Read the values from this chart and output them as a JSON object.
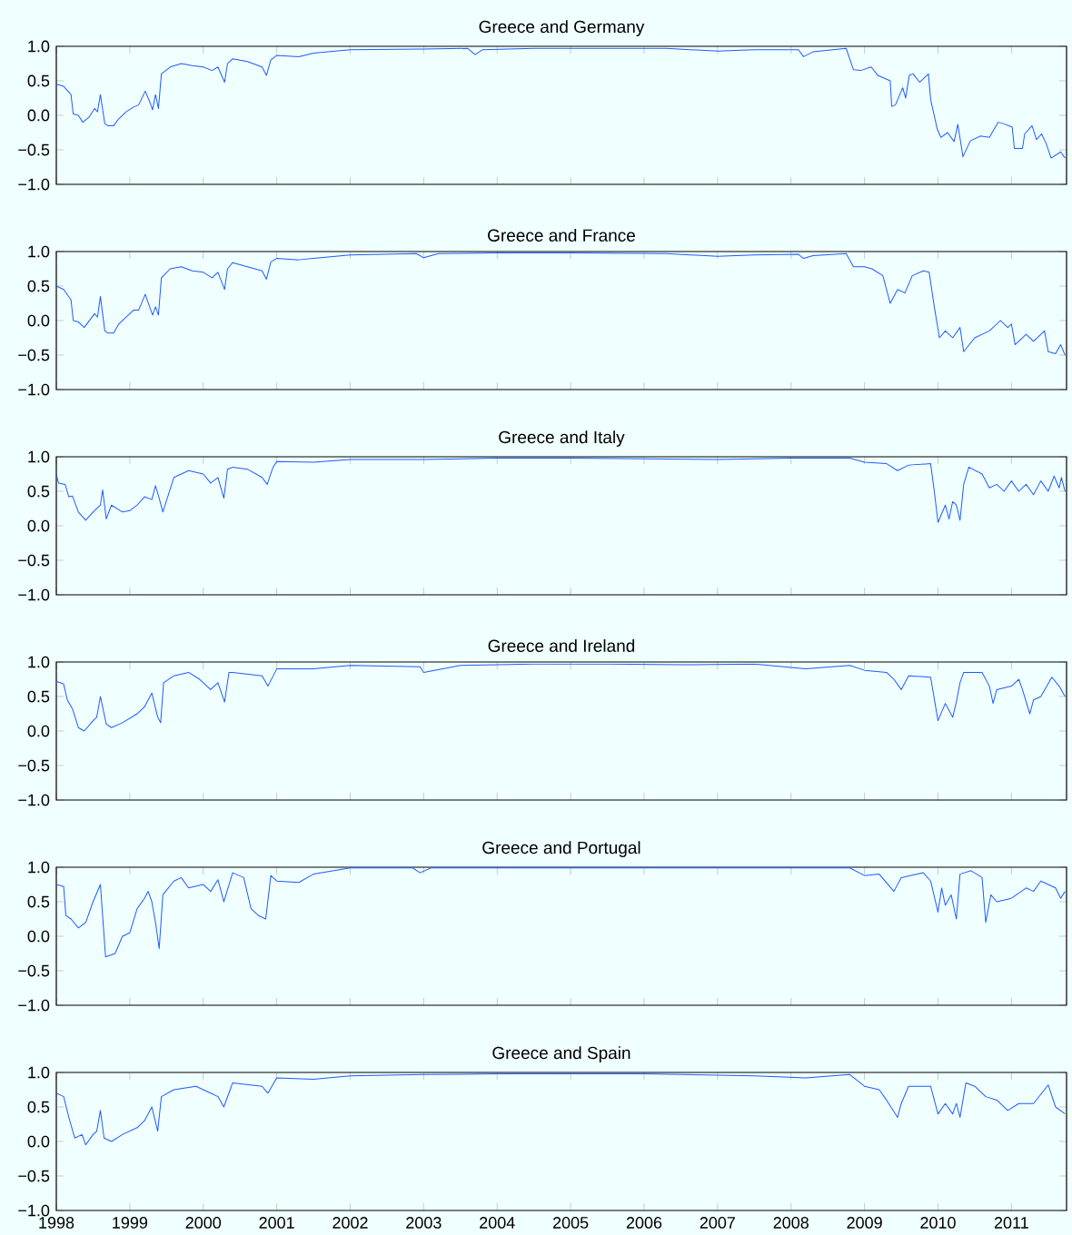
{
  "chart_data": [
    {
      "type": "line",
      "title": "Greece and Germany",
      "color": "#1f5bff",
      "xlim": [
        1998,
        2011.75
      ],
      "ylim": [
        -1,
        1
      ],
      "tick_labels": "y",
      "xticks": [
        1998,
        1999,
        2000,
        2001,
        2002,
        2003,
        2004,
        2005,
        2006,
        2007,
        2008,
        2009,
        2010,
        2011
      ],
      "yticks": [
        {
          "value": -1,
          "label": "−1.0"
        },
        {
          "value": -0.5,
          "label": "−0.5"
        },
        {
          "value": 0,
          "label": "0.0"
        },
        {
          "value": 0.5,
          "label": "0.5"
        },
        {
          "value": 1,
          "label": "1.0"
        }
      ],
      "x": [
        1998.0,
        1998.1,
        1998.2,
        1998.23,
        1998.3,
        1998.36,
        1998.45,
        1998.52,
        1998.56,
        1998.6,
        1998.66,
        1998.7,
        1998.78,
        1998.85,
        1998.95,
        1999.05,
        1999.12,
        1999.21,
        1999.27,
        1999.31,
        1999.35,
        1999.39,
        1999.43,
        1999.55,
        1999.7,
        1999.85,
        2000.0,
        2000.12,
        2000.2,
        2000.29,
        2000.33,
        2000.4,
        2000.6,
        2000.8,
        2000.86,
        2000.92,
        2001.0,
        2001.3,
        2001.5,
        2002.0,
        2003.0,
        2003.6,
        2003.7,
        2003.8,
        2004.5,
        2005.5,
        2006.3,
        2007.0,
        2007.5,
        2008.1,
        2008.17,
        2008.3,
        2008.75,
        2008.85,
        2008.95,
        2009.09,
        2009.18,
        2009.35,
        2009.37,
        2009.42,
        2009.52,
        2009.56,
        2009.61,
        2009.66,
        2009.75,
        2009.87,
        2009.9,
        2009.99,
        2010.04,
        2010.13,
        2010.22,
        2010.27,
        2010.34,
        2010.44,
        2010.58,
        2010.7,
        2010.82,
        2010.89,
        2011.01,
        2011.04,
        2011.15,
        2011.18,
        2011.28,
        2011.34,
        2011.41,
        2011.47,
        2011.54,
        2011.67,
        2011.73
      ],
      "values": [
        0.45,
        0.42,
        0.3,
        0.02,
        0.0,
        -0.1,
        -0.02,
        0.1,
        0.05,
        0.3,
        -0.12,
        -0.15,
        -0.15,
        -0.05,
        0.05,
        0.12,
        0.15,
        0.35,
        0.2,
        0.08,
        0.3,
        0.1,
        0.6,
        0.7,
        0.75,
        0.72,
        0.7,
        0.65,
        0.7,
        0.48,
        0.75,
        0.82,
        0.78,
        0.7,
        0.58,
        0.8,
        0.87,
        0.85,
        0.9,
        0.95,
        0.96,
        0.97,
        0.88,
        0.95,
        0.97,
        0.97,
        0.97,
        0.93,
        0.95,
        0.95,
        0.85,
        0.92,
        0.97,
        0.66,
        0.65,
        0.7,
        0.58,
        0.5,
        0.13,
        0.15,
        0.4,
        0.25,
        0.58,
        0.6,
        0.48,
        0.6,
        0.23,
        -0.2,
        -0.32,
        -0.25,
        -0.38,
        -0.13,
        -0.6,
        -0.37,
        -0.3,
        -0.32,
        -0.1,
        -0.12,
        -0.17,
        -0.48,
        -0.48,
        -0.27,
        -0.15,
        -0.35,
        -0.27,
        -0.4,
        -0.62,
        -0.53,
        -0.62
      ]
    },
    {
      "type": "line",
      "title": "Greece and France",
      "color": "#1f5bff",
      "xlim": [
        1998,
        2011.75
      ],
      "ylim": [
        -1,
        1
      ],
      "tick_labels": "y",
      "xticks": [
        1998,
        1999,
        2000,
        2001,
        2002,
        2003,
        2004,
        2005,
        2006,
        2007,
        2008,
        2009,
        2010,
        2011
      ],
      "yticks": [
        {
          "value": -1,
          "label": "−1.0"
        },
        {
          "value": -0.5,
          "label": "−0.5"
        },
        {
          "value": 0,
          "label": "0.0"
        },
        {
          "value": 0.5,
          "label": "0.5"
        },
        {
          "value": 1,
          "label": "1.0"
        }
      ],
      "x": [
        1998.0,
        1998.1,
        1998.2,
        1998.23,
        1998.3,
        1998.38,
        1998.45,
        1998.52,
        1998.56,
        1998.6,
        1998.66,
        1998.7,
        1998.78,
        1998.85,
        1998.95,
        1999.05,
        1999.12,
        1999.21,
        1999.27,
        1999.31,
        1999.35,
        1999.39,
        1999.43,
        1999.55,
        1999.7,
        1999.85,
        2000.0,
        2000.12,
        2000.2,
        2000.29,
        2000.33,
        2000.4,
        2000.6,
        2000.8,
        2000.86,
        2000.92,
        2001.0,
        2001.3,
        2001.5,
        2002.0,
        2002.9,
        2003.0,
        2003.2,
        2004.0,
        2005.0,
        2006.3,
        2007.0,
        2007.5,
        2008.1,
        2008.17,
        2008.3,
        2008.75,
        2008.85,
        2009.0,
        2009.1,
        2009.25,
        2009.35,
        2009.45,
        2009.55,
        2009.65,
        2009.8,
        2009.88,
        2009.95,
        2010.02,
        2010.1,
        2010.2,
        2010.3,
        2010.35,
        2010.5,
        2010.7,
        2010.85,
        2010.95,
        2011.0,
        2011.05,
        2011.2,
        2011.3,
        2011.45,
        2011.5,
        2011.6,
        2011.67,
        2011.73
      ],
      "values": [
        0.5,
        0.45,
        0.3,
        0.0,
        -0.02,
        -0.1,
        0.0,
        0.1,
        0.05,
        0.35,
        -0.15,
        -0.18,
        -0.18,
        -0.05,
        0.05,
        0.15,
        0.15,
        0.38,
        0.2,
        0.08,
        0.2,
        0.08,
        0.62,
        0.75,
        0.78,
        0.72,
        0.7,
        0.62,
        0.7,
        0.45,
        0.75,
        0.84,
        0.78,
        0.72,
        0.6,
        0.85,
        0.9,
        0.88,
        0.9,
        0.95,
        0.97,
        0.91,
        0.97,
        0.98,
        0.98,
        0.97,
        0.93,
        0.95,
        0.96,
        0.9,
        0.94,
        0.97,
        0.78,
        0.78,
        0.75,
        0.65,
        0.25,
        0.45,
        0.4,
        0.65,
        0.72,
        0.7,
        0.2,
        -0.25,
        -0.15,
        -0.25,
        -0.1,
        -0.45,
        -0.25,
        -0.15,
        0.0,
        -0.1,
        -0.05,
        -0.35,
        -0.2,
        -0.3,
        -0.15,
        -0.45,
        -0.48,
        -0.35,
        -0.5
      ]
    },
    {
      "type": "line",
      "title": "Greece and Italy",
      "color": "#1f5bff",
      "xlim": [
        1998,
        2011.75
      ],
      "ylim": [
        -1,
        1
      ],
      "tick_labels": "y",
      "xticks": [
        1998,
        1999,
        2000,
        2001,
        2002,
        2003,
        2004,
        2005,
        2006,
        2007,
        2008,
        2009,
        2010,
        2011
      ],
      "yticks": [
        {
          "value": -1,
          "label": "−1.0"
        },
        {
          "value": -0.5,
          "label": "−0.5"
        },
        {
          "value": 0,
          "label": "0.0"
        },
        {
          "value": 0.5,
          "label": "0.5"
        },
        {
          "value": 1,
          "label": "1.0"
        }
      ],
      "x": [
        1998.0,
        1998.03,
        1998.12,
        1998.17,
        1998.22,
        1998.3,
        1998.4,
        1998.5,
        1998.6,
        1998.63,
        1998.68,
        1998.75,
        1998.9,
        1999.0,
        1999.1,
        1999.2,
        1999.3,
        1999.35,
        1999.4,
        1999.45,
        1999.6,
        1999.8,
        2000.0,
        2000.1,
        2000.2,
        2000.28,
        2000.33,
        2000.4,
        2000.6,
        2000.8,
        2000.87,
        2000.95,
        2001.0,
        2001.5,
        2002.0,
        2003.0,
        2004.0,
        2005.0,
        2006.0,
        2007.0,
        2008.0,
        2008.8,
        2009.0,
        2009.3,
        2009.45,
        2009.6,
        2009.9,
        2009.95,
        2010.0,
        2010.1,
        2010.15,
        2010.2,
        2010.25,
        2010.3,
        2010.35,
        2010.42,
        2010.6,
        2010.7,
        2010.8,
        2010.9,
        2011.0,
        2011.1,
        2011.2,
        2011.3,
        2011.4,
        2011.5,
        2011.58,
        2011.65,
        2011.68,
        2011.73
      ],
      "values": [
        0.75,
        0.62,
        0.6,
        0.42,
        0.43,
        0.2,
        0.08,
        0.2,
        0.3,
        0.52,
        0.1,
        0.3,
        0.2,
        0.22,
        0.3,
        0.42,
        0.38,
        0.58,
        0.4,
        0.2,
        0.7,
        0.8,
        0.75,
        0.62,
        0.7,
        0.4,
        0.82,
        0.85,
        0.82,
        0.7,
        0.6,
        0.85,
        0.93,
        0.92,
        0.96,
        0.96,
        0.98,
        0.98,
        0.97,
        0.96,
        0.98,
        0.98,
        0.92,
        0.9,
        0.8,
        0.88,
        0.9,
        0.5,
        0.05,
        0.3,
        0.1,
        0.35,
        0.3,
        0.08,
        0.6,
        0.85,
        0.75,
        0.55,
        0.6,
        0.5,
        0.65,
        0.5,
        0.6,
        0.45,
        0.65,
        0.5,
        0.72,
        0.55,
        0.7,
        0.5
      ]
    },
    {
      "type": "line",
      "title": "Greece and Ireland",
      "color": "#1f5bff",
      "xlim": [
        1998,
        2011.75
      ],
      "ylim": [
        -1,
        1
      ],
      "tick_labels": "y",
      "xticks": [
        1998,
        1999,
        2000,
        2001,
        2002,
        2003,
        2004,
        2005,
        2006,
        2007,
        2008,
        2009,
        2010,
        2011
      ],
      "yticks": [
        {
          "value": -1,
          "label": "−1.0"
        },
        {
          "value": -0.5,
          "label": "−0.5"
        },
        {
          "value": 0,
          "label": "0.0"
        },
        {
          "value": 0.5,
          "label": "0.5"
        },
        {
          "value": 1,
          "label": "1.0"
        }
      ],
      "x": [
        1998.0,
        1998.1,
        1998.15,
        1998.22,
        1998.3,
        1998.38,
        1998.5,
        1998.55,
        1998.6,
        1998.68,
        1998.75,
        1998.9,
        1999.1,
        1999.2,
        1999.3,
        1999.38,
        1999.42,
        1999.46,
        1999.6,
        1999.8,
        1999.95,
        2000.1,
        2000.2,
        2000.29,
        2000.35,
        2000.4,
        2000.8,
        2000.88,
        2001.0,
        2001.5,
        2002.0,
        2002.95,
        2003.0,
        2003.5,
        2004.5,
        2005.5,
        2006.5,
        2007.5,
        2008.2,
        2008.8,
        2009.0,
        2009.3,
        2009.4,
        2009.5,
        2009.6,
        2009.9,
        2010.0,
        2010.1,
        2010.2,
        2010.25,
        2010.3,
        2010.35,
        2010.6,
        2010.7,
        2010.75,
        2010.8,
        2011.0,
        2011.1,
        2011.15,
        2011.25,
        2011.3,
        2011.4,
        2011.55,
        2011.65,
        2011.73
      ],
      "values": [
        0.72,
        0.68,
        0.45,
        0.32,
        0.05,
        0.0,
        0.15,
        0.2,
        0.5,
        0.1,
        0.05,
        0.12,
        0.25,
        0.35,
        0.55,
        0.2,
        0.12,
        0.7,
        0.8,
        0.85,
        0.75,
        0.6,
        0.7,
        0.42,
        0.85,
        0.85,
        0.8,
        0.65,
        0.9,
        0.9,
        0.95,
        0.93,
        0.85,
        0.95,
        0.97,
        0.97,
        0.96,
        0.97,
        0.9,
        0.95,
        0.88,
        0.85,
        0.75,
        0.6,
        0.8,
        0.78,
        0.15,
        0.4,
        0.2,
        0.42,
        0.7,
        0.85,
        0.85,
        0.65,
        0.4,
        0.6,
        0.65,
        0.75,
        0.6,
        0.25,
        0.45,
        0.5,
        0.78,
        0.65,
        0.5
      ]
    },
    {
      "type": "line",
      "title": "Greece and Portugal",
      "color": "#1f5bff",
      "xlim": [
        1998,
        2011.75
      ],
      "ylim": [
        -1,
        1
      ],
      "tick_labels": "y",
      "xticks": [
        1998,
        1999,
        2000,
        2001,
        2002,
        2003,
        2004,
        2005,
        2006,
        2007,
        2008,
        2009,
        2010,
        2011
      ],
      "yticks": [
        {
          "value": -1,
          "label": "−1.0"
        },
        {
          "value": -0.5,
          "label": "−0.5"
        },
        {
          "value": 0,
          "label": "0.0"
        },
        {
          "value": 0.5,
          "label": "0.5"
        },
        {
          "value": 1,
          "label": "1.0"
        }
      ],
      "x": [
        1998.0,
        1998.1,
        1998.13,
        1998.2,
        1998.3,
        1998.4,
        1998.5,
        1998.6,
        1998.67,
        1998.8,
        1998.9,
        1999.0,
        1999.1,
        1999.2,
        1999.25,
        1999.3,
        1999.35,
        1999.4,
        1999.45,
        1999.6,
        1999.7,
        1999.8,
        2000.0,
        2000.1,
        2000.2,
        2000.28,
        2000.4,
        2000.55,
        2000.65,
        2000.75,
        2000.85,
        2000.92,
        2001.0,
        2001.3,
        2001.5,
        2002.0,
        2002.85,
        2002.95,
        2003.1,
        2005.0,
        2007.0,
        2008.8,
        2009.0,
        2009.2,
        2009.4,
        2009.5,
        2009.8,
        2009.9,
        2010.0,
        2010.05,
        2010.1,
        2010.18,
        2010.25,
        2010.3,
        2010.45,
        2010.6,
        2010.65,
        2010.72,
        2010.8,
        2011.0,
        2011.2,
        2011.3,
        2011.4,
        2011.6,
        2011.67,
        2011.73
      ],
      "values": [
        0.75,
        0.72,
        0.3,
        0.25,
        0.12,
        0.2,
        0.5,
        0.75,
        -0.3,
        -0.25,
        0.0,
        0.05,
        0.4,
        0.55,
        0.65,
        0.5,
        0.2,
        -0.18,
        0.6,
        0.8,
        0.85,
        0.7,
        0.75,
        0.65,
        0.82,
        0.5,
        0.92,
        0.85,
        0.4,
        0.3,
        0.25,
        0.88,
        0.8,
        0.78,
        0.9,
        0.99,
        0.99,
        0.92,
        0.99,
        0.99,
        0.99,
        0.99,
        0.88,
        0.9,
        0.65,
        0.85,
        0.92,
        0.8,
        0.35,
        0.7,
        0.45,
        0.6,
        0.25,
        0.9,
        0.95,
        0.85,
        0.2,
        0.6,
        0.5,
        0.55,
        0.7,
        0.65,
        0.8,
        0.7,
        0.55,
        0.65
      ]
    },
    {
      "type": "line",
      "title": "Greece and Spain",
      "color": "#1f5bff",
      "xlim": [
        1998,
        2011.75
      ],
      "ylim": [
        -1,
        1
      ],
      "xticks": [
        1998,
        1999,
        2000,
        2001,
        2002,
        2003,
        2004,
        2005,
        2006,
        2007,
        2008,
        2009,
        2010,
        2011
      ],
      "yticks": [
        {
          "value": -1,
          "label": "−1.0"
        },
        {
          "value": -0.5,
          "label": "−0.5"
        },
        {
          "value": 0,
          "label": "0.0"
        },
        {
          "value": 0.5,
          "label": "0.5"
        },
        {
          "value": 1,
          "label": "1.0"
        }
      ],
      "x": [
        1998.0,
        1998.1,
        1998.17,
        1998.25,
        1998.35,
        1998.4,
        1998.5,
        1998.55,
        1998.6,
        1998.65,
        1998.75,
        1998.9,
        1999.1,
        1999.2,
        1999.3,
        1999.38,
        1999.43,
        1999.6,
        1999.9,
        2000.1,
        2000.2,
        2000.28,
        2000.4,
        2000.8,
        2000.88,
        2001.0,
        2001.5,
        2002.0,
        2003.0,
        2004.0,
        2005.0,
        2006.0,
        2007.0,
        2007.5,
        2008.2,
        2008.8,
        2009.0,
        2009.2,
        2009.3,
        2009.45,
        2009.5,
        2009.6,
        2009.9,
        2010.0,
        2010.1,
        2010.2,
        2010.25,
        2010.3,
        2010.38,
        2010.5,
        2010.65,
        2010.8,
        2010.95,
        2011.1,
        2011.3,
        2011.45,
        2011.5,
        2011.6,
        2011.73
      ],
      "values": [
        0.7,
        0.65,
        0.35,
        0.05,
        0.1,
        -0.05,
        0.1,
        0.15,
        0.45,
        0.05,
        0.0,
        0.1,
        0.2,
        0.3,
        0.5,
        0.15,
        0.65,
        0.75,
        0.8,
        0.7,
        0.65,
        0.5,
        0.85,
        0.8,
        0.7,
        0.92,
        0.9,
        0.95,
        0.97,
        0.98,
        0.98,
        0.98,
        0.96,
        0.95,
        0.92,
        0.97,
        0.8,
        0.75,
        0.6,
        0.35,
        0.55,
        0.8,
        0.8,
        0.4,
        0.55,
        0.4,
        0.55,
        0.35,
        0.85,
        0.8,
        0.65,
        0.6,
        0.45,
        0.55,
        0.55,
        0.75,
        0.82,
        0.5,
        0.4
      ]
    }
  ]
}
